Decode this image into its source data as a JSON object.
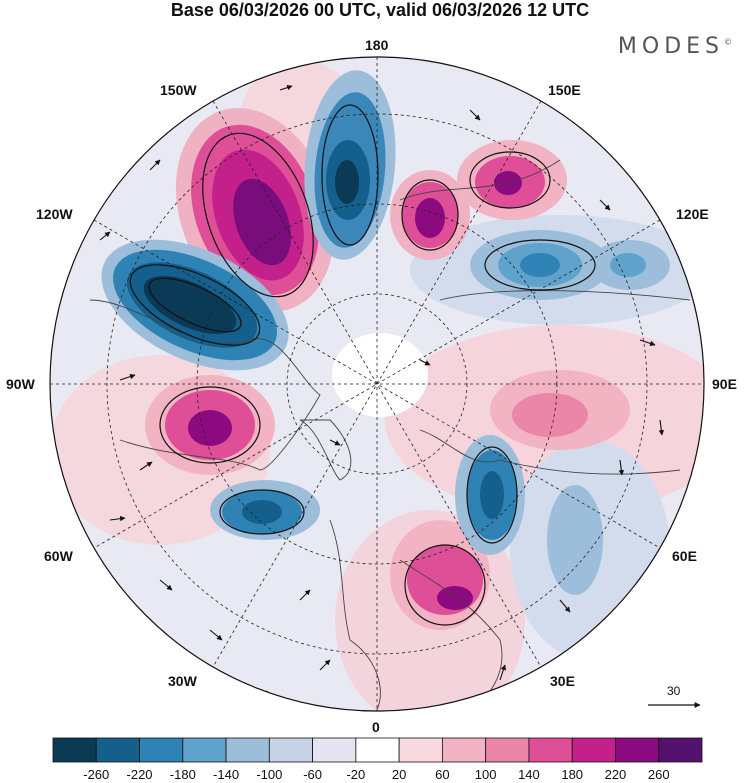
{
  "header": {
    "title": "Base 06/03/2026 00 UTC, valid 06/03/2026 12 UTC",
    "brand": "MODES",
    "brand_mark": "©"
  },
  "map": {
    "longitude_labels": {
      "top": "180",
      "bottom": "0",
      "left": "90W",
      "right": "90E",
      "upper_left_1": "150W",
      "upper_left_2": "120W",
      "upper_right_1": "150E",
      "upper_right_2": "120E",
      "lower_left_1": "60W",
      "lower_left_2": "30W",
      "lower_right_1": "60E",
      "lower_right_2": "30E"
    },
    "reference_vector": "30"
  },
  "colorbar": {
    "ticks": [
      "-260",
      "-220",
      "-180",
      "-140",
      "-100",
      "-60",
      "-20",
      "20",
      "60",
      "100",
      "140",
      "180",
      "220",
      "260"
    ],
    "colors": [
      "#0b3a57",
      "#145f8c",
      "#2f83b4",
      "#5fa2cb",
      "#9dbedb",
      "#c6d3e6",
      "#e4e5f1",
      "#ffffff",
      "#f8d9de",
      "#f2b3c2",
      "#eb86a8",
      "#df4f98",
      "#c4208c",
      "#8c0a7f",
      "#55116f"
    ]
  },
  "colors": {
    "land_outline": "#444444",
    "grid": "#222222"
  }
}
